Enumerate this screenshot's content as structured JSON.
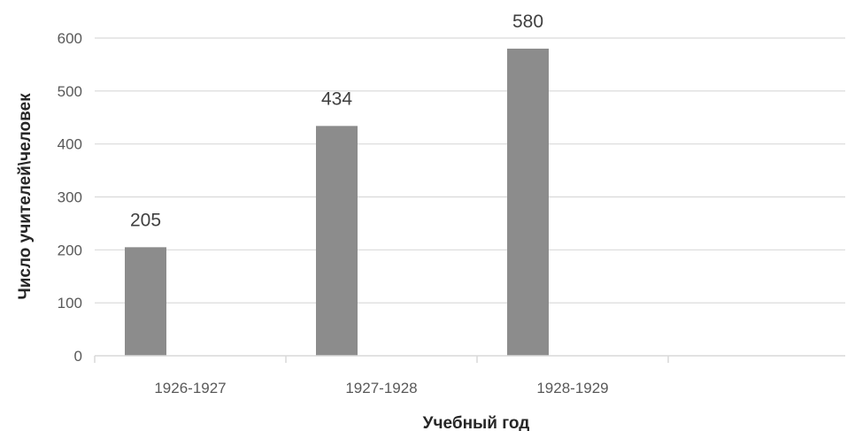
{
  "chart_data": {
    "type": "bar",
    "categories": [
      "1926-1927",
      "1927-1928",
      "1928-1929",
      ""
    ],
    "values": [
      205,
      434,
      580,
      null
    ],
    "data_labels": [
      "205",
      "434",
      "580",
      ""
    ],
    "xlabel": "Учебный год",
    "ylabel": "Число учителей\\человек",
    "ylim": [
      0,
      600
    ],
    "yticks": [
      0,
      100,
      200,
      300,
      400,
      500,
      600
    ],
    "grid": true,
    "legend": "none",
    "bar_color": "#8c8c8c",
    "grid_color": "#d9d9d9"
  }
}
